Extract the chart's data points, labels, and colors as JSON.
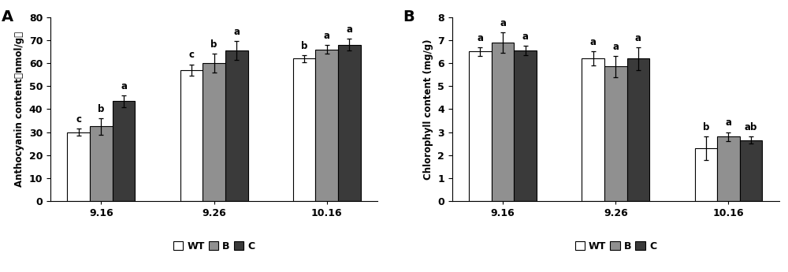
{
  "panel_A": {
    "title": "A",
    "ylabel": "Anthocyanin content（nmol/g）",
    "categories": [
      "9.16",
      "9.26",
      "10.16"
    ],
    "series": {
      "WT": [
        30.0,
        57.0,
        62.0
      ],
      "B": [
        32.5,
        60.0,
        66.0
      ],
      "C": [
        43.5,
        65.5,
        68.0
      ]
    },
    "errors": {
      "WT": [
        1.5,
        2.5,
        1.5
      ],
      "B": [
        3.5,
        4.0,
        2.0
      ],
      "C": [
        2.5,
        4.0,
        2.5
      ]
    },
    "significance": {
      "9.16": [
        "c",
        "b",
        "a"
      ],
      "9.26": [
        "c",
        "b",
        "a"
      ],
      "10.16": [
        "b",
        "a",
        "a"
      ]
    },
    "ylim": [
      0,
      80
    ],
    "yticks": [
      0,
      10,
      20,
      30,
      40,
      50,
      60,
      70,
      80
    ]
  },
  "panel_B": {
    "title": "B",
    "ylabel": "Chlorophyll content (mg/g)",
    "categories": [
      "9.16",
      "9.26",
      "10.16"
    ],
    "series": {
      "WT": [
        6.5,
        6.2,
        2.3
      ],
      "B": [
        6.9,
        5.85,
        2.8
      ],
      "C": [
        6.55,
        6.2,
        2.65
      ]
    },
    "errors": {
      "WT": [
        0.2,
        0.3,
        0.5
      ],
      "B": [
        0.45,
        0.45,
        0.2
      ],
      "C": [
        0.2,
        0.5,
        0.15
      ]
    },
    "significance": {
      "9.16": [
        "a",
        "a",
        "a"
      ],
      "9.26": [
        "a",
        "a",
        "a"
      ],
      "10.16": [
        "b",
        "a",
        "ab"
      ]
    },
    "ylim": [
      0,
      8
    ],
    "yticks": [
      0,
      1,
      2,
      3,
      4,
      5,
      6,
      7,
      8
    ]
  },
  "bar_colors": {
    "WT": "#ffffff",
    "B": "#909090",
    "C": "#3a3a3a"
  },
  "bar_edgecolor": "#000000",
  "bar_width": 0.2,
  "background_color": "#ffffff",
  "sig_fontsize": 8.5,
  "label_fontsize": 8.5,
  "tick_fontsize": 9,
  "legend_fontsize": 9,
  "panel_label_fontsize": 14
}
